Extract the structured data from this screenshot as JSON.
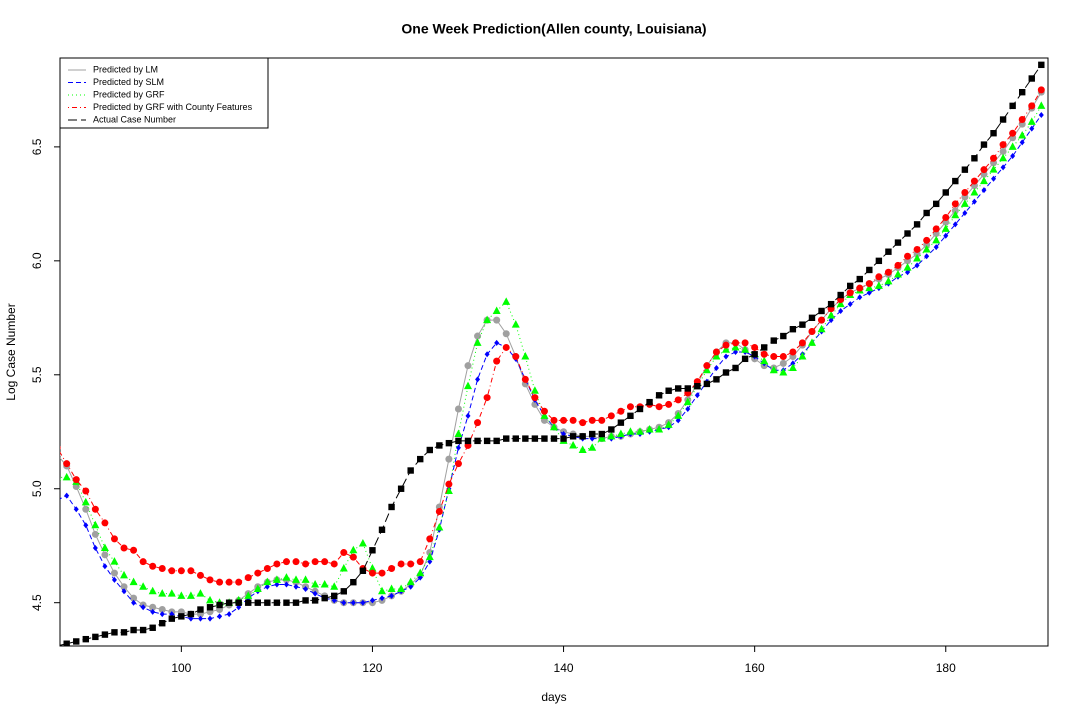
{
  "chart_data": {
    "type": "line",
    "title": "One Week Prediction(Allen county, Louisiana)",
    "x_label": "days",
    "y_label": "Log Case Number",
    "xlim": [
      87.3,
      190.7
    ],
    "ylim": [
      4.31,
      6.89
    ],
    "xticks": [
      100,
      120,
      140,
      160,
      180
    ],
    "yticks": [
      4.5,
      {
        "value": 5,
        "label": "5.0"
      },
      5.5,
      {
        "value": 6,
        "label": "6.0"
      },
      6.5
    ],
    "legend": "top-left",
    "x": [
      87,
      88,
      89,
      90,
      91,
      92,
      93,
      94,
      95,
      96,
      97,
      98,
      99,
      100,
      101,
      102,
      103,
      104,
      105,
      106,
      107,
      108,
      109,
      110,
      111,
      112,
      113,
      114,
      115,
      116,
      117,
      118,
      119,
      120,
      121,
      122,
      123,
      124,
      125,
      126,
      127,
      128,
      129,
      130,
      131,
      132,
      133,
      134,
      135,
      136,
      137,
      138,
      139,
      140,
      141,
      142,
      143,
      144,
      145,
      146,
      147,
      148,
      149,
      150,
      151,
      152,
      153,
      154,
      155,
      156,
      157,
      158,
      159,
      160,
      161,
      162,
      163,
      164,
      165,
      166,
      167,
      168,
      169,
      170,
      171,
      172,
      173,
      174,
      175,
      176,
      177,
      178,
      179,
      180,
      181,
      182,
      183,
      184,
      185,
      186,
      187,
      188,
      189,
      190
    ],
    "series": [
      {
        "name": "Predicted by LM",
        "color": "#a0a0a0",
        "dash": "solid",
        "marker": "circle",
        "values": [
          5.15,
          5.1,
          5.01,
          4.91,
          4.8,
          4.71,
          4.63,
          4.57,
          4.52,
          4.49,
          4.48,
          4.47,
          4.46,
          4.46,
          4.45,
          4.45,
          4.46,
          4.47,
          4.49,
          4.51,
          4.54,
          4.57,
          4.59,
          4.6,
          4.6,
          4.59,
          4.57,
          4.55,
          4.53,
          4.51,
          4.5,
          4.5,
          4.5,
          4.5,
          4.51,
          4.53,
          4.55,
          4.58,
          4.62,
          4.72,
          4.92,
          5.13,
          5.35,
          5.54,
          5.67,
          5.74,
          5.74,
          5.68,
          5.58,
          5.46,
          5.37,
          5.3,
          5.27,
          5.25,
          5.24,
          5.23,
          5.23,
          5.22,
          5.23,
          5.23,
          5.24,
          5.25,
          5.26,
          5.27,
          5.29,
          5.33,
          5.39,
          5.46,
          5.54,
          5.6,
          5.64,
          5.64,
          5.61,
          5.57,
          5.54,
          5.53,
          5.55,
          5.58,
          5.63,
          5.69,
          5.74,
          5.79,
          5.83,
          5.86,
          5.88,
          5.9,
          5.92,
          5.94,
          5.97,
          6.0,
          6.03,
          6.07,
          6.12,
          6.17,
          6.22,
          6.28,
          6.33,
          6.38,
          6.43,
          6.48,
          6.54,
          6.6,
          6.67,
          6.74
        ]
      },
      {
        "name": "Predicted by SLM",
        "color": "#0000ff",
        "dash": "dashed",
        "marker": "diamond",
        "values": [
          4.95,
          4.97,
          4.91,
          4.84,
          4.74,
          4.66,
          4.6,
          4.55,
          4.5,
          4.48,
          4.46,
          4.45,
          4.45,
          4.44,
          4.43,
          4.43,
          4.43,
          4.44,
          4.45,
          4.48,
          4.52,
          4.55,
          4.57,
          4.58,
          4.58,
          4.57,
          4.56,
          4.54,
          4.52,
          4.51,
          4.5,
          4.5,
          4.5,
          4.51,
          4.52,
          4.53,
          4.55,
          4.57,
          4.61,
          4.68,
          4.82,
          5.0,
          5.18,
          5.32,
          5.48,
          5.59,
          5.64,
          5.62,
          5.57,
          5.48,
          5.39,
          5.32,
          5.27,
          5.24,
          5.23,
          5.22,
          5.22,
          5.22,
          5.22,
          5.23,
          5.24,
          5.24,
          5.25,
          5.26,
          5.27,
          5.3,
          5.35,
          5.41,
          5.47,
          5.53,
          5.58,
          5.6,
          5.6,
          5.58,
          5.55,
          5.52,
          5.52,
          5.55,
          5.59,
          5.64,
          5.69,
          5.74,
          5.78,
          5.81,
          5.84,
          5.86,
          5.88,
          5.9,
          5.93,
          5.95,
          5.98,
          6.02,
          6.06,
          6.11,
          6.16,
          6.21,
          6.26,
          6.31,
          6.36,
          6.41,
          6.46,
          6.52,
          6.58,
          6.64
        ]
      },
      {
        "name": "Predicted by GRF",
        "color": "#00ff00",
        "dash": "dotted",
        "marker": "triangle",
        "values": [
          5.05,
          5.05,
          5.03,
          4.94,
          4.84,
          4.74,
          4.68,
          4.62,
          4.59,
          4.57,
          4.55,
          4.54,
          4.54,
          4.53,
          4.53,
          4.54,
          4.51,
          4.5,
          4.5,
          4.51,
          4.53,
          4.56,
          4.59,
          4.6,
          4.61,
          4.6,
          4.6,
          4.58,
          4.58,
          4.57,
          4.65,
          4.73,
          4.76,
          4.65,
          4.55,
          4.56,
          4.56,
          4.59,
          4.63,
          4.7,
          4.83,
          4.99,
          5.24,
          5.45,
          5.64,
          5.74,
          5.78,
          5.82,
          5.72,
          5.58,
          5.43,
          5.32,
          5.27,
          5.21,
          5.19,
          5.17,
          5.18,
          5.22,
          5.23,
          5.24,
          5.25,
          5.25,
          5.26,
          5.26,
          5.28,
          5.32,
          5.38,
          5.45,
          5.52,
          5.58,
          5.61,
          5.62,
          5.61,
          5.59,
          5.56,
          5.52,
          5.51,
          5.53,
          5.58,
          5.64,
          5.7,
          5.76,
          5.81,
          5.85,
          5.87,
          5.88,
          5.89,
          5.91,
          5.94,
          5.97,
          6.01,
          6.05,
          6.09,
          6.14,
          6.2,
          6.25,
          6.3,
          6.35,
          6.4,
          6.45,
          6.5,
          6.55,
          6.61,
          6.68
        ]
      },
      {
        "name": "Predicted by GRF with County Features",
        "color": "#ff0000",
        "dash": "dotdash",
        "marker": "circle",
        "values": [
          5.18,
          5.11,
          5.04,
          4.99,
          4.91,
          4.85,
          4.78,
          4.74,
          4.73,
          4.68,
          4.66,
          4.65,
          4.64,
          4.64,
          4.64,
          4.62,
          4.6,
          4.59,
          4.59,
          4.59,
          4.61,
          4.63,
          4.65,
          4.67,
          4.68,
          4.68,
          4.67,
          4.68,
          4.68,
          4.67,
          4.72,
          4.7,
          4.65,
          4.63,
          4.63,
          4.65,
          4.67,
          4.67,
          4.68,
          4.78,
          4.9,
          5.02,
          5.11,
          5.19,
          5.29,
          5.4,
          5.56,
          5.62,
          5.58,
          5.48,
          5.4,
          5.34,
          5.3,
          5.3,
          5.3,
          5.29,
          5.3,
          5.3,
          5.32,
          5.34,
          5.36,
          5.36,
          5.37,
          5.36,
          5.37,
          5.39,
          5.42,
          5.47,
          5.54,
          5.6,
          5.63,
          5.64,
          5.64,
          5.62,
          5.59,
          5.58,
          5.58,
          5.6,
          5.64,
          5.69,
          5.74,
          5.79,
          5.83,
          5.86,
          5.88,
          5.9,
          5.93,
          5.95,
          5.98,
          6.02,
          6.05,
          6.09,
          6.14,
          6.19,
          6.25,
          6.3,
          6.35,
          6.4,
          6.45,
          6.51,
          6.56,
          6.62,
          6.68,
          6.75
        ]
      },
      {
        "name": "Actual Case Number",
        "color": "#000000",
        "dash": "longdash",
        "marker": "square",
        "values": [
          4.31,
          4.32,
          4.33,
          4.34,
          4.35,
          4.36,
          4.37,
          4.37,
          4.38,
          4.38,
          4.39,
          4.41,
          4.43,
          4.44,
          4.45,
          4.47,
          4.48,
          4.49,
          4.5,
          4.5,
          4.5,
          4.5,
          4.5,
          4.5,
          4.5,
          4.5,
          4.51,
          4.51,
          4.52,
          4.53,
          4.55,
          4.59,
          4.64,
          4.73,
          4.82,
          4.92,
          5.0,
          5.08,
          5.13,
          5.17,
          5.19,
          5.2,
          5.21,
          5.21,
          5.21,
          5.21,
          5.21,
          5.22,
          5.22,
          5.22,
          5.22,
          5.22,
          5.22,
          5.22,
          5.23,
          5.23,
          5.24,
          5.24,
          5.26,
          5.29,
          5.32,
          5.35,
          5.38,
          5.41,
          5.43,
          5.44,
          5.44,
          5.45,
          5.46,
          5.48,
          5.51,
          5.53,
          5.57,
          5.59,
          5.62,
          5.65,
          5.67,
          5.7,
          5.72,
          5.75,
          5.78,
          5.81,
          5.85,
          5.89,
          5.92,
          5.96,
          6.0,
          6.04,
          6.08,
          6.12,
          6.16,
          6.21,
          6.25,
          6.3,
          6.35,
          6.4,
          6.45,
          6.51,
          6.56,
          6.62,
          6.68,
          6.74,
          6.8,
          6.86
        ]
      }
    ]
  }
}
